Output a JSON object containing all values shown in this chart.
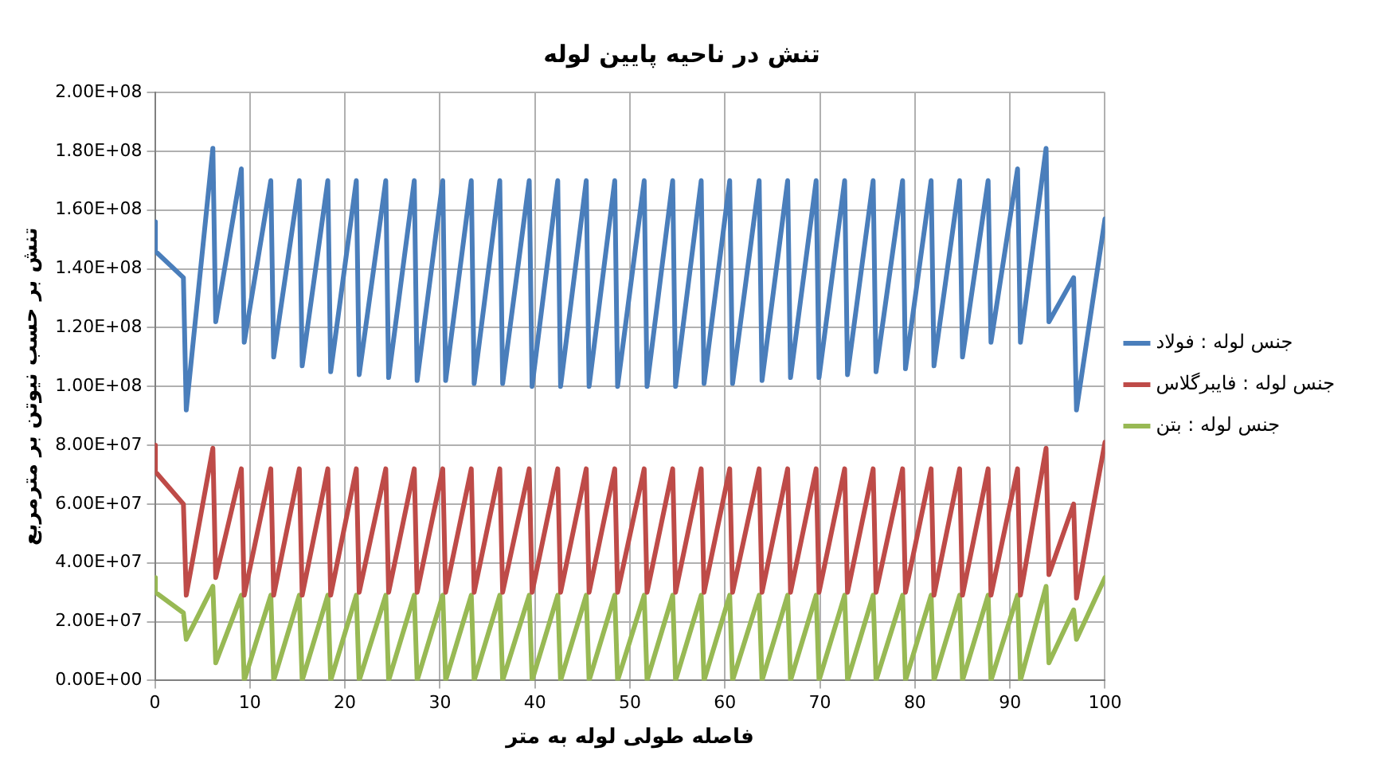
{
  "chart_data": {
    "type": "line",
    "title": "تنش در ناحیه پایین لوله",
    "xlabel": "فاصله طولی لوله به متر",
    "ylabel": "تنش بر حسب نیوتن بر مترمربع",
    "x": [
      0,
      0.05,
      3.0,
      3.3,
      6.1,
      6.4,
      9.1,
      9.4,
      12.2,
      12.5,
      15.2,
      15.5,
      18.2,
      18.5,
      21.2,
      21.5,
      24.3,
      24.6,
      27.3,
      27.6,
      30.3,
      30.6,
      33.3,
      33.6,
      36.3,
      36.6,
      39.4,
      39.7,
      42.4,
      42.7,
      45.4,
      45.7,
      48.4,
      48.7,
      51.5,
      51.8,
      54.5,
      54.8,
      57.5,
      57.8,
      60.5,
      60.8,
      63.6,
      63.9,
      66.6,
      66.9,
      69.6,
      69.9,
      72.6,
      72.9,
      75.6,
      75.9,
      78.7,
      79.0,
      81.7,
      82.0,
      84.7,
      85.0,
      87.7,
      88.0,
      90.8,
      91.1,
      93.8,
      94.1,
      96.7,
      97.0,
      100
    ],
    "series": [
      {
        "name": "جنس لوله : فولاد",
        "color": "#4a7ebb",
        "values": [
          156000000,
          146000000,
          137000000,
          92000000,
          181000000,
          122000000,
          174000000,
          115000000,
          170000000,
          110000000,
          170000000,
          107000000,
          170000000,
          105000000,
          170000000,
          104000000,
          170000000,
          103000000,
          170000000,
          102000000,
          170000000,
          102000000,
          170000000,
          101000000,
          170000000,
          101000000,
          170000000,
          100000000,
          170000000,
          100000000,
          170000000,
          100000000,
          170000000,
          100000000,
          170000000,
          100000000,
          170000000,
          100000000,
          170000000,
          101000000,
          170000000,
          101000000,
          170000000,
          102000000,
          170000000,
          103000000,
          170000000,
          103000000,
          170000000,
          104000000,
          170000000,
          105000000,
          170000000,
          106000000,
          170000000,
          107000000,
          170000000,
          110000000,
          170000000,
          115000000,
          174000000,
          115000000,
          181000000,
          122000000,
          137000000,
          92000000,
          157000000
        ]
      },
      {
        "name": "جنس لوله : فایبرگلاس",
        "color": "#be4b48",
        "values": [
          80000000,
          71000000,
          60000000,
          29000000,
          79000000,
          35000000,
          72000000,
          29000000,
          72000000,
          29000000,
          72000000,
          29000000,
          72000000,
          29000000,
          72000000,
          30000000,
          72000000,
          30000000,
          72000000,
          30000000,
          72000000,
          30000000,
          72000000,
          30000000,
          72000000,
          30000000,
          72000000,
          30000000,
          72000000,
          30000000,
          72000000,
          30000000,
          72000000,
          30000000,
          72000000,
          30000000,
          72000000,
          30000000,
          72000000,
          30000000,
          72000000,
          30000000,
          72000000,
          30000000,
          72000000,
          30000000,
          72000000,
          30000000,
          72000000,
          30000000,
          72000000,
          30000000,
          72000000,
          30000000,
          72000000,
          29000000,
          72000000,
          29000000,
          72000000,
          29000000,
          72000000,
          29000000,
          79000000,
          36000000,
          60000000,
          28000000,
          81000000
        ]
      },
      {
        "name": "جنس لوله : بتن",
        "color": "#98b954",
        "values": [
          35000000,
          30000000,
          23000000,
          14000000,
          32000000,
          6000000,
          29000000,
          0,
          29000000,
          0,
          29000000,
          0,
          29000000,
          0,
          29000000,
          0,
          29000000,
          0,
          29000000,
          0,
          29000000,
          0,
          29000000,
          0,
          29000000,
          0,
          29000000,
          0,
          29000000,
          0,
          29000000,
          0,
          29000000,
          0,
          29000000,
          0,
          29000000,
          0,
          29000000,
          0,
          29000000,
          0,
          29000000,
          0,
          29000000,
          0,
          29000000,
          0,
          29000000,
          0,
          29000000,
          0,
          29000000,
          0,
          29000000,
          0,
          29000000,
          0,
          29000000,
          0,
          29000000,
          0,
          32000000,
          6000000,
          24000000,
          14000000,
          35000000
        ]
      }
    ],
    "xlim": [
      0,
      100
    ],
    "xticks": [
      0,
      10,
      20,
      30,
      40,
      50,
      60,
      70,
      80,
      90,
      100
    ],
    "ylim": [
      0,
      200000000
    ],
    "yticks": [
      {
        "value": 0,
        "label": "0.00E+00"
      },
      {
        "value": 20000000,
        "label": "2.00E+07"
      },
      {
        "value": 40000000,
        "label": "4.00E+07"
      },
      {
        "value": 60000000,
        "label": "6.00E+07"
      },
      {
        "value": 80000000,
        "label": "8.00E+07"
      },
      {
        "value": 100000000,
        "label": "1.00E+08"
      },
      {
        "value": 120000000,
        "label": "1.20E+08"
      },
      {
        "value": 140000000,
        "label": "1.40E+08"
      },
      {
        "value": 160000000,
        "label": "1.60E+08"
      },
      {
        "value": 180000000,
        "label": "1.80E+08"
      },
      {
        "value": 200000000,
        "label": "2.00E+08"
      }
    ],
    "grid": true,
    "legend": "right",
    "marker": "none",
    "line_style": "solid"
  }
}
